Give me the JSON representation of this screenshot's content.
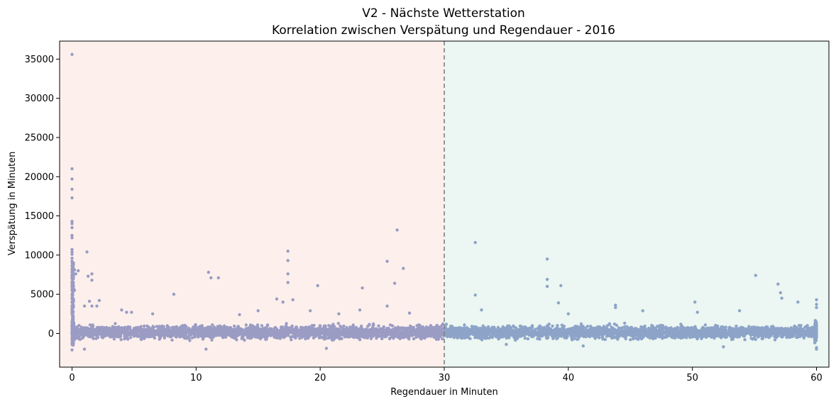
{
  "chart_data": {
    "type": "scatter",
    "title": "V2 - Nächste Wetterstation",
    "subtitle": "Korrelation zwischen Verspätung und Regendauer - 2016",
    "xlabel": "Regendauer in Minuten",
    "ylabel": "Verspätung in Minuten",
    "xlim": [
      -1,
      61
    ],
    "ylim": [
      -4300,
      37300
    ],
    "xticks": [
      0,
      10,
      20,
      30,
      40,
      50,
      60
    ],
    "yticks": [
      0,
      5000,
      10000,
      15000,
      20000,
      25000,
      30000,
      35000
    ],
    "grid": false,
    "threshold_line": {
      "x": 30,
      "style": "dashed",
      "color": "#808080"
    },
    "regions": [
      {
        "from": -1,
        "to": 30,
        "color": "#fdf0ec"
      },
      {
        "from": 30,
        "to": 61,
        "color": "#ecf6f2"
      }
    ],
    "colors": {
      "left_points": "#9a9cc4",
      "right_points": "#8da4c8"
    },
    "band": {
      "y_low": -1200,
      "y_high": 1500,
      "description_units": "minutes"
    },
    "outliers": [
      [
        0,
        35600
      ],
      [
        0,
        21000
      ],
      [
        0,
        19700
      ],
      [
        0,
        18400
      ],
      [
        0,
        17300
      ],
      [
        0,
        14300
      ],
      [
        0,
        14000
      ],
      [
        0,
        13500
      ],
      [
        0,
        12500
      ],
      [
        0,
        12200
      ],
      [
        0,
        10700
      ],
      [
        0,
        10400
      ],
      [
        0,
        10100
      ],
      [
        0,
        9600
      ],
      [
        0,
        9200
      ],
      [
        0,
        8600
      ],
      [
        0,
        8200
      ],
      [
        0,
        7800
      ],
      [
        0,
        7400
      ],
      [
        0,
        7000
      ],
      [
        0,
        6500
      ],
      [
        0,
        6100
      ],
      [
        0,
        5600
      ],
      [
        0,
        5000
      ],
      [
        0,
        4500
      ],
      [
        0,
        4000
      ],
      [
        0,
        3500
      ],
      [
        0,
        3000
      ],
      [
        0,
        2600
      ],
      [
        0,
        -2100
      ],
      [
        0.2,
        8100
      ],
      [
        0.3,
        7600
      ],
      [
        0.5,
        8000
      ],
      [
        0.2,
        5500
      ],
      [
        1.2,
        10400
      ],
      [
        1.3,
        7300
      ],
      [
        1.6,
        7600
      ],
      [
        1.6,
        6800
      ],
      [
        1.0,
        3500
      ],
      [
        1.4,
        4100
      ],
      [
        1.6,
        3500
      ],
      [
        2.2,
        4200
      ],
      [
        2.0,
        3500
      ],
      [
        4.0,
        3000
      ],
      [
        4.4,
        2700
      ],
      [
        4.8,
        2700
      ],
      [
        6.5,
        2500
      ],
      [
        8.2,
        5000
      ],
      [
        11.0,
        7800
      ],
      [
        11.2,
        7100
      ],
      [
        11.8,
        7100
      ],
      [
        13.5,
        2400
      ],
      [
        15.0,
        2900
      ],
      [
        16.5,
        4400
      ],
      [
        17.0,
        4000
      ],
      [
        17.4,
        10500
      ],
      [
        17.4,
        9300
      ],
      [
        17.4,
        7600
      ],
      [
        17.4,
        6500
      ],
      [
        17.8,
        4300
      ],
      [
        19.2,
        2900
      ],
      [
        19.8,
        6100
      ],
      [
        21.5,
        2500
      ],
      [
        23.2,
        3000
      ],
      [
        23.4,
        5800
      ],
      [
        25.4,
        9200
      ],
      [
        25.4,
        3500
      ],
      [
        26.0,
        6400
      ],
      [
        26.2,
        13200
      ],
      [
        26.7,
        8300
      ],
      [
        27.2,
        2600
      ],
      [
        32.5,
        11600
      ],
      [
        32.5,
        4900
      ],
      [
        33.0,
        3000
      ],
      [
        38.3,
        9500
      ],
      [
        38.3,
        6900
      ],
      [
        38.3,
        6000
      ],
      [
        39.2,
        3900
      ],
      [
        39.4,
        6100
      ],
      [
        40.0,
        2500
      ],
      [
        43.8,
        3600
      ],
      [
        43.8,
        3300
      ],
      [
        46.0,
        2900
      ],
      [
        50.2,
        4000
      ],
      [
        50.4,
        2700
      ],
      [
        53.8,
        2900
      ],
      [
        55.1,
        7400
      ],
      [
        56.9,
        6300
      ],
      [
        57.1,
        5200
      ],
      [
        57.2,
        4500
      ],
      [
        58.5,
        4000
      ],
      [
        60.0,
        4300
      ],
      [
        60.0,
        3700
      ],
      [
        60.0,
        3300
      ],
      [
        60.0,
        -2000
      ],
      [
        60.0,
        -1800
      ],
      [
        35.0,
        -1400
      ],
      [
        41.2,
        -1600
      ],
      [
        52.5,
        -1700
      ],
      [
        20.5,
        -1900
      ],
      [
        10.8,
        -2000
      ],
      [
        1.0,
        -2000
      ]
    ]
  }
}
